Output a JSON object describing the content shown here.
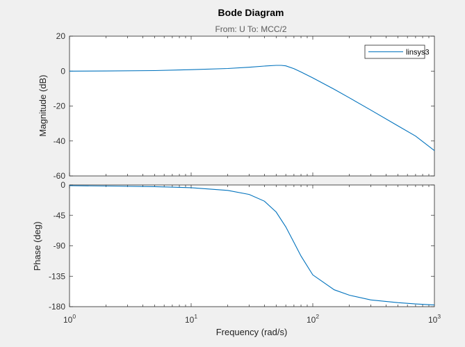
{
  "chart_data": [
    {
      "type": "line",
      "panel": "magnitude",
      "title": "Bode Diagram",
      "subtitle": "From: U  To: MCC/2",
      "ylabel": "Magnitude (dB)",
      "xlabel": "",
      "xscale": "log",
      "xlim": [
        1,
        1000
      ],
      "ylim": [
        -60,
        20
      ],
      "yticks": [
        "20",
        "0",
        "-20",
        "-40",
        "-60"
      ],
      "yticks_values": [
        20,
        0,
        -20,
        -40,
        -60
      ],
      "legend": {
        "placement": "top-right",
        "entries": [
          "linsys3"
        ]
      },
      "series": [
        {
          "name": "linsys3",
          "color": "#0072bd",
          "x": [
            1,
            2,
            5,
            10,
            20,
            30,
            40,
            50,
            55,
            60,
            70,
            80,
            100,
            150,
            200,
            300,
            500,
            700,
            1000
          ],
          "y": [
            0,
            0.05,
            0.3,
            0.8,
            1.5,
            2.2,
            2.9,
            3.3,
            3.3,
            3.0,
            1.4,
            -0.5,
            -3.9,
            -10.4,
            -15.3,
            -22.3,
            -31.3,
            -37.2,
            -45.5
          ]
        }
      ]
    },
    {
      "type": "line",
      "panel": "phase",
      "ylabel": "Phase (deg)",
      "xlabel": "Frequency  (rad/s)",
      "xscale": "log",
      "xlim": [
        1,
        1000
      ],
      "ylim": [
        -180,
        0
      ],
      "yticks": [
        "0",
        "-45",
        "-90",
        "-135",
        "-180"
      ],
      "yticks_values": [
        0,
        -45,
        -90,
        -135,
        -180
      ],
      "xticks": [
        {
          "value": 1,
          "base": "10",
          "exp": "0"
        },
        {
          "value": 10,
          "base": "10",
          "exp": "1"
        },
        {
          "value": 100,
          "base": "10",
          "exp": "2"
        },
        {
          "value": 1000,
          "base": "10",
          "exp": "3"
        }
      ],
      "series": [
        {
          "name": "linsys3",
          "color": "#0072bd",
          "x": [
            1,
            2,
            5,
            10,
            20,
            30,
            40,
            50,
            60,
            70,
            80,
            100,
            150,
            200,
            300,
            500,
            700,
            1000
          ],
          "y": [
            -1,
            -1.5,
            -2.5,
            -4,
            -8,
            -14,
            -24,
            -40,
            -62,
            -85,
            -105,
            -133,
            -155,
            -163,
            -170,
            -174,
            -176,
            -177.5
          ]
        }
      ]
    }
  ]
}
